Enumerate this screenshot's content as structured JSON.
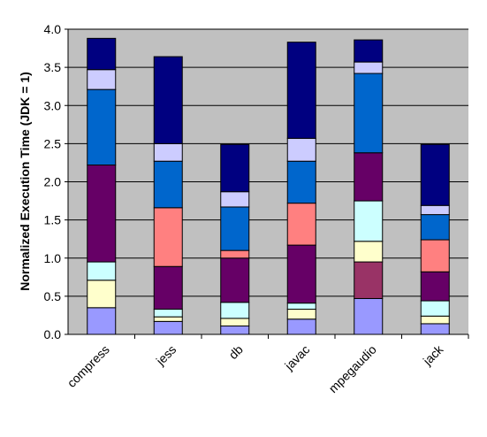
{
  "chart_data": {
    "type": "stacked_bar",
    "y_label": "Normalized Execution Time (JDK = 1)",
    "categories": [
      "compress",
      "jess",
      "db",
      "javac",
      "mpegaudio",
      "jack"
    ],
    "series": [
      {
        "color": "#9999ff",
        "values": [
          0.35,
          0.17,
          0.11,
          0.2,
          0.47,
          0.14
        ]
      },
      {
        "color": "#993366",
        "values": [
          0,
          0,
          0,
          0,
          0.48,
          0
        ]
      },
      {
        "color": "#ffffcc",
        "values": [
          0.36,
          0.06,
          0.1,
          0.13,
          0.27,
          0.1
        ]
      },
      {
        "color": "#ccffff",
        "values": [
          0.24,
          0.1,
          0.21,
          0.08,
          0.53,
          0.2
        ]
      },
      {
        "color": "#660066",
        "values": [
          1.27,
          0.56,
          0.58,
          0.76,
          0.63,
          0.38
        ]
      },
      {
        "color": "#ff8080",
        "values": [
          0,
          0.77,
          0.1,
          0.55,
          0,
          0.42
        ]
      },
      {
        "color": "#0066cc",
        "values": [
          0.99,
          0.61,
          0.57,
          0.55,
          1.04,
          0.33
        ]
      },
      {
        "color": "#ccccff",
        "values": [
          0.26,
          0.23,
          0.2,
          0.3,
          0.15,
          0.12
        ]
      },
      {
        "color": "#000080",
        "values": [
          0.41,
          1.14,
          0.62,
          1.26,
          0.29,
          0.8
        ]
      }
    ],
    "ylim": [
      0,
      4
    ],
    "yticks": [
      {
        "value": 0,
        "label": "0.0"
      },
      {
        "value": 0.5,
        "label": "0.5"
      },
      {
        "value": 1,
        "label": "1.0"
      },
      {
        "value": 1.5,
        "label": "1.5"
      },
      {
        "value": 2,
        "label": "2.0"
      },
      {
        "value": 2.5,
        "label": "2.5"
      },
      {
        "value": 3,
        "label": "3.0"
      },
      {
        "value": 3.5,
        "label": "3.5"
      },
      {
        "value": 4,
        "label": "4.0"
      }
    ],
    "grid": true,
    "plot_background": "#c0c0c0"
  }
}
